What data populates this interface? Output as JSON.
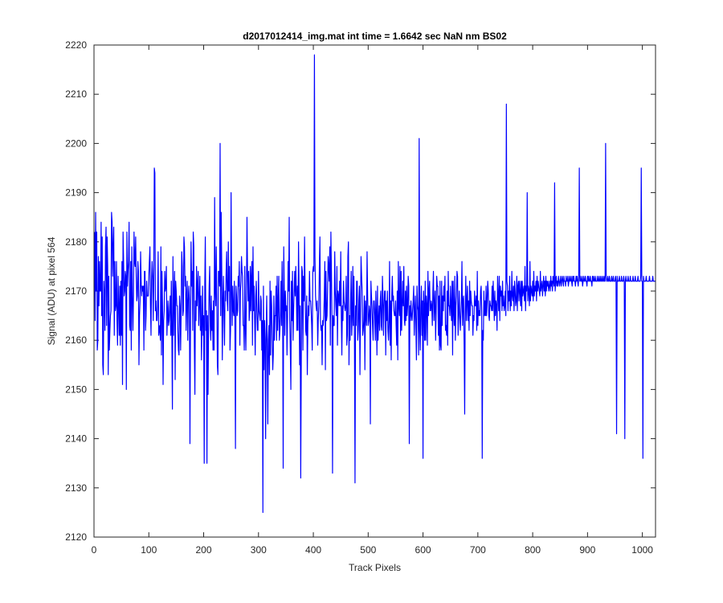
{
  "chart_data": {
    "type": "line",
    "title": "d2017012414_img.mat int time = 1.6642 sec  NaN nm BS02",
    "xlabel": "Track Pixels",
    "ylabel": "Signal (ADU) at pixel 564",
    "xlim": [
      0,
      1024
    ],
    "ylim": [
      2120,
      2220
    ],
    "xticks": [
      0,
      100,
      200,
      300,
      400,
      500,
      600,
      700,
      800,
      900,
      1000
    ],
    "yticks": [
      2120,
      2130,
      2140,
      2150,
      2160,
      2170,
      2180,
      2190,
      2200,
      2210,
      2220
    ],
    "grid": false,
    "legend": "none",
    "series": [
      {
        "color": "#0000ff",
        "x_start": 1,
        "x_step": 1,
        "values": [
          2182,
          2164,
          2186,
          2170,
          2182,
          2158,
          2160,
          2177,
          2167,
          2176,
          2170,
          2170,
          2184,
          2165,
          2181,
          2155,
          2153,
          2172,
          2169,
          2162,
          2179,
          2183,
          2163,
          2181,
          2175,
          2153,
          2173,
          2158,
          2162,
          2165,
          2166,
          2186,
          2184,
          2173,
          2179,
          2183,
          2161,
          2176,
          2166,
          2167,
          2176,
          2164,
          2159,
          2173,
          2167,
          2161,
          2171,
          2159,
          2172,
          2161,
          2176,
          2151,
          2182,
          2176,
          2169,
          2170,
          2174,
          2173,
          2150,
          2182,
          2171,
          2174,
          2176,
          2184,
          2163,
          2162,
          2176,
          2158,
          2179,
          2169,
          2162,
          2169,
          2182,
          2176,
          2175,
          2181,
          2173,
          2168,
          2169,
          2176,
          2174,
          2155,
          2165,
          2168,
          2178,
          2172,
          2169,
          2171,
          2170,
          2171,
          2158,
          2174,
          2174,
          2162,
          2165,
          2172,
          2169,
          2169,
          2169,
          2173,
          2176,
          2179,
          2167,
          2161,
          2172,
          2176,
          2173,
          2164,
          2172,
          2178,
          2194,
          2166,
          2168,
          2164,
          2164,
          2167,
          2178,
          2161,
          2162,
          2163,
          2160,
          2179,
          2157,
          2174,
          2167,
          2151,
          2164,
          2166,
          2174,
          2170,
          2171,
          2175,
          2161,
          2165,
          2168,
          2163,
          2164,
          2167,
          2169,
          2161,
          2172,
          2161,
          2146,
          2177,
          2161,
          2169,
          2174,
          2152,
          2172,
          2170,
          2167,
          2167,
          2162,
          2158,
          2157,
          2169,
          2167,
          2158,
          2166,
          2178,
          2175,
          2165,
          2166,
          2181,
          2179,
          2171,
          2173,
          2162,
          2169,
          2172,
          2160,
          2168,
          2171,
          2168,
          2162,
          2165,
          2180,
          2171,
          2174,
          2162,
          2182,
          2179,
          2159,
          2149,
          2168,
          2164,
          2175,
          2167,
          2171,
          2174,
          2163,
          2168,
          2173,
          2162,
          2169,
          2156,
          2163,
          2171,
          2161,
          2165,
          2147,
          2171,
          2181,
          2162,
          2166,
          2171,
          2165,
          2149,
          2163,
          2171,
          2175,
          2163,
          2160,
          2169,
          2162,
          2166,
          2158,
          2168,
          2158,
          2189,
          2170,
          2167,
          2179,
          2168,
          2155,
          2153,
          2174,
          2174,
          2171,
          2160,
          2165,
          2186,
          2174,
          2156,
          2168,
          2173,
          2165,
          2159,
          2170,
          2168,
          2174,
          2178,
          2168,
          2166,
          2180,
          2170,
          2175,
          2158,
          2162,
          2190,
          2170,
          2163,
          2171,
          2166,
          2165,
          2172,
          2163,
          2175,
          2171,
          2169,
          2165,
          2166,
          2173,
          2171,
          2176,
          2159,
          2170,
          2172,
          2177,
          2174,
          2173,
          2163,
          2163,
          2158,
          2175,
          2163,
          2158,
          2169,
          2185,
          2174,
          2168,
          2174,
          2164,
          2166,
          2175,
          2166,
          2173,
          2176,
          2159,
          2179,
          2166,
          2171,
          2164,
          2157,
          2169,
          2172,
          2166,
          2162,
          2162,
          2174,
          2166,
          2165,
          2164,
          2169,
          2168,
          2158,
          2164,
          2174,
          2171,
          2154,
          2164,
          2160,
          2168,
          2162,
          2169,
          2157,
          2143,
          2160,
          2163,
          2153,
          2172,
          2157,
          2170,
          2167,
          2160,
          2154,
          2157,
          2169,
          2160,
          2165,
          2165,
          2171,
          2160,
          2173,
          2162,
          2168,
          2173,
          2160,
          2162,
          2165,
          2172,
          2163,
          2176,
          2168,
          2174,
          2179,
          2170,
          2161,
          2170,
          2166,
          2167,
          2157,
          2165,
          2176,
          2170,
          2168,
          2164,
          2158,
          2150,
          2172,
          2164,
          2174,
          2160,
          2166,
          2170,
          2174,
          2169,
          2175,
          2170,
          2162,
          2171,
          2162,
          2180,
          2169,
          2155,
          2167,
          2168,
          2155,
          2175,
          2174,
          2158,
          2173,
          2168,
          2181,
          2170,
          2162,
          2161,
          2169,
          2153,
          2163,
          2167,
          2165,
          2174,
          2168,
          2168,
          2166,
          2163,
          2158,
          2174,
          2175,
          2174,
          2166,
          2177,
          2169,
          2167,
          2166,
          2168,
          2159,
          2164,
          2167,
          2175,
          2181,
          2164,
          2162,
          2163,
          2155,
          2164,
          2163,
          2165,
          2169,
          2176,
          2154,
          2174,
          2164,
          2165,
          2170,
          2177,
          2175,
          2172,
          2179,
          2159,
          2182,
          2174,
          2164,
          2171,
          2165,
          2163,
          2163,
          2178,
          2170,
          2167,
          2165,
          2175,
          2159,
          2170,
          2169,
          2167,
          2172,
          2167,
          2178,
          2165,
          2157,
          2167,
          2164,
          2172,
          2168,
          2167,
          2166,
          2167,
          2173,
          2159,
          2161,
          2177,
          2180,
          2155,
          2165,
          2160,
          2168,
          2174,
          2161,
          2165,
          2175,
          2163,
          2173,
          2160,
          2170,
          2167,
          2163,
          2172,
          2172,
          2160,
          2162,
          2168,
          2171,
          2153,
          2166,
          2177,
          2173,
          2170,
          2161,
          2162,
          2164,
          2169,
          2154,
          2168,
          2165,
          2163,
          2178,
          2169,
          2163,
          2164,
          2167,
          2166,
          2170,
          2172,
          2169,
          2167,
          2163,
          2160,
          2168,
          2168,
          2165,
          2160,
          2170,
          2165,
          2157,
          2171,
          2160,
          2164,
          2167,
          2162,
          2168,
          2170,
          2163,
          2162,
          2173,
          2169,
          2161,
          2167,
          2170,
          2170,
          2157,
          2168,
          2164,
          2170,
          2162,
          2160,
          2164,
          2176,
          2159,
          2168,
          2156,
          2169,
          2173,
          2168,
          2169,
          2166,
          2165,
          2165,
          2168,
          2163,
          2159,
          2170,
          2156,
          2176,
          2167,
          2165,
          2175,
          2161,
          2174,
          2162,
          2167,
          2172,
          2167,
          2175,
          2164,
          2163,
          2170,
          2164,
          2171,
          2165,
          2167,
          2173,
          2171,
          2170,
          2167,
          2164,
          2168,
          2165,
          2164,
          2166,
          2168,
          2171,
          2161,
          2166,
          2169,
          2163,
          2156,
          2171,
          2167,
          2166,
          2157,
          2165,
          2162,
          2158,
          2167,
          2171,
          2161,
          2168,
          2163,
          2170,
          2167,
          2160,
          2172,
          2160,
          2169,
          2167,
          2159,
          2174,
          2165,
          2170,
          2172,
          2166,
          2166,
          2168,
          2167,
          2163,
          2170,
          2174,
          2164,
          2167,
          2170,
          2160,
          2166,
          2173,
          2171,
          2171,
          2161,
          2169,
          2158,
          2172,
          2159,
          2158,
          2172,
          2163,
          2169,
          2166,
          2171,
          2168,
          2173,
          2162,
          2163,
          2161,
          2170,
          2159,
          2174,
          2167,
          2167,
          2165,
          2171,
          2167,
          2164,
          2172,
          2157,
          2172,
          2166,
          2163,
          2173,
          2160,
          2167,
          2169,
          2174,
          2173,
          2161,
          2165,
          2170,
          2165,
          2162,
          2165,
          2168,
          2176,
          2163,
          2168,
          2169,
          2159,
          2165,
          2166,
          2173,
          2164,
          2168,
          2171,
          2164,
          2168,
          2162,
          2172,
          2165,
          2170,
          2168,
          2167,
          2167,
          2161,
          2165,
          2164,
          2170,
          2167,
          2167,
          2169,
          2162,
          2174,
          2163,
          2168,
          2165,
          2166,
          2165,
          2170,
          2171,
          2166,
          2170,
          2162,
          2160,
          2170,
          2165,
          2168,
          2165,
          2171,
          2165,
          2168,
          2172,
          2170,
          2165,
          2164,
          2168,
          2167,
          2167,
          2166,
          2171,
          2166,
          2172,
          2168,
          2164,
          2170,
          2165,
          2168,
          2167,
          2162,
          2173,
          2169,
          2166,
          2173,
          2164,
          2171,
          2169,
          2170,
          2166,
          2172,
          2167,
          2169,
          2166,
          2167,
          2170,
          2165,
          2170,
          2172,
          2171,
          2166,
          2170,
          2168,
          2173,
          2166,
          2170,
          2167,
          2174,
          2169,
          2168,
          2171,
          2166,
          2172,
          2170,
          2167,
          2168,
          2173,
          2166,
          2171,
          2172,
          2168,
          2172,
          2170,
          2167,
          2172,
          2166,
          2172,
          2169,
          2170,
          2171,
          2168,
          2175,
          2166,
          2171,
          2170,
          2173,
          2168,
          2171,
          2170,
          2167,
          2176,
          2168,
          2171,
          2170,
          2169,
          2172,
          2168,
          2174,
          2169,
          2171,
          2170,
          2172,
          2168,
          2173,
          2170,
          2172,
          2171,
          2170,
          2169,
          2174,
          2170,
          2171,
          2172,
          2169,
          2171,
          2173,
          2170,
          2172,
          2169,
          2173,
          2170,
          2172,
          2171,
          2172,
          2170,
          2171,
          2172,
          2170,
          2173,
          2171,
          2172,
          2170,
          2173,
          2172,
          2171,
          2173,
          2170,
          2172,
          2173,
          2171,
          2172,
          2171,
          2173,
          2172,
          2171,
          2172,
          2173,
          2171,
          2172,
          2173,
          2172,
          2171,
          2173,
          2172,
          2172,
          2171,
          2173,
          2172,
          2172,
          2173,
          2171,
          2172,
          2173,
          2172,
          2172,
          2173,
          2172,
          2171,
          2173,
          2172,
          2173,
          2172,
          2172,
          2171,
          2173,
          2172,
          2173,
          2172,
          2171,
          2173,
          2172,
          2172,
          2173,
          2172,
          2172,
          2173,
          2171,
          2172,
          2173,
          2172,
          2172,
          2173,
          2172,
          2172,
          2171,
          2173,
          2172,
          2173,
          2172,
          2172,
          2173,
          2172,
          2172,
          2171,
          2173,
          2172,
          2173,
          2172,
          2172,
          2173,
          2172,
          2172,
          2172,
          2173,
          2172,
          2172,
          2173,
          2172,
          2172,
          2173,
          2172,
          2172,
          2173,
          2172,
          2172,
          2173,
          2172,
          2172,
          2172,
          2173,
          2172,
          2172,
          2173,
          2172,
          2172,
          2173,
          2172,
          2172,
          2172,
          2173,
          2172,
          2172,
          2173,
          2172,
          2172,
          2172,
          2173,
          2172,
          2172,
          2173,
          2172,
          2172,
          2172,
          2173,
          2172,
          2172,
          2172,
          2173,
          2172,
          2172,
          2172,
          2173,
          2172,
          2172,
          2172,
          2173,
          2172,
          2172,
          2172,
          2173,
          2172,
          2172,
          2172,
          2173,
          2172,
          2172,
          2172,
          2172,
          2173,
          2172,
          2172,
          2172,
          2173,
          2172,
          2172,
          2172,
          2172,
          2173,
          2172,
          2172,
          2172,
          2172,
          2173,
          2172,
          2172,
          2172,
          2172,
          2173,
          2172,
          2172,
          2172,
          2172,
          2173,
          2172,
          2172,
          2172,
          2172,
          2172,
          2173,
          2172,
          2172,
          2172,
          2172,
          2172,
          2173,
          2172,
          2172,
          2172,
          2172,
          2172,
          2172,
          2173,
          2172,
          2172,
          2172,
          2172,
          2172,
          2172,
          2172,
          2173,
          2172,
          2172,
          2172,
          2172,
          2172,
          2172,
          2172,
          2172,
          2173,
          2172
        ],
        "peaks": [
          {
            "x": 110,
            "y": 2195
          },
          {
            "x": 175,
            "y": 2139
          },
          {
            "x": 201,
            "y": 2135
          },
          {
            "x": 206,
            "y": 2135
          },
          {
            "x": 230,
            "y": 2200
          },
          {
            "x": 258,
            "y": 2138
          },
          {
            "x": 308,
            "y": 2125
          },
          {
            "x": 313,
            "y": 2140
          },
          {
            "x": 345,
            "y": 2134
          },
          {
            "x": 356,
            "y": 2185
          },
          {
            "x": 377,
            "y": 2132
          },
          {
            "x": 402,
            "y": 2218
          },
          {
            "x": 435,
            "y": 2133
          },
          {
            "x": 476,
            "y": 2131
          },
          {
            "x": 504,
            "y": 2143
          },
          {
            "x": 575,
            "y": 2139
          },
          {
            "x": 593,
            "y": 2201
          },
          {
            "x": 600,
            "y": 2136
          },
          {
            "x": 676,
            "y": 2145
          },
          {
            "x": 708,
            "y": 2136
          },
          {
            "x": 752,
            "y": 2208
          },
          {
            "x": 790,
            "y": 2190
          },
          {
            "x": 840,
            "y": 2192
          },
          {
            "x": 885,
            "y": 2195
          },
          {
            "x": 933,
            "y": 2200
          },
          {
            "x": 953,
            "y": 2141
          },
          {
            "x": 968,
            "y": 2140
          },
          {
            "x": 998,
            "y": 2195
          },
          {
            "x": 1001,
            "y": 2136
          }
        ]
      }
    ]
  }
}
